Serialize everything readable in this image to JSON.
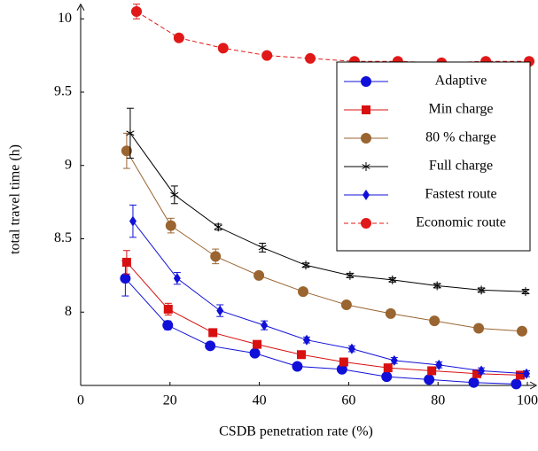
{
  "chart_data": {
    "type": "line",
    "xlabel": "CSDB penetration rate (%)",
    "ylabel": "total travel time (h)",
    "xlim": [
      0,
      102
    ],
    "ylim": [
      7.5,
      10.1
    ],
    "xticks": [
      0,
      20,
      40,
      60,
      80,
      100
    ],
    "yticks": [
      8,
      8.5,
      9,
      9.5,
      10
    ],
    "legend": "upper right",
    "series": [
      {
        "name": "Adaptive",
        "color": "#1010d8",
        "marker": "circle",
        "dashed": false,
        "x": [
          10,
          19.5,
          29,
          39,
          48.5,
          58.5,
          68.5,
          78,
          88,
          97.5
        ],
        "values": [
          8.23,
          7.91,
          7.77,
          7.72,
          7.63,
          7.61,
          7.56,
          7.54,
          7.52,
          7.51
        ],
        "errors": [
          0.12,
          0.03,
          0.015,
          0.015,
          0.01,
          0.01,
          0.01,
          0.01,
          0.01,
          0.01
        ]
      },
      {
        "name": "Min charge",
        "color": "#d81010",
        "marker": "square",
        "dashed": false,
        "x": [
          10.3,
          19.6,
          29.6,
          39.5,
          49.4,
          58.9,
          68.8,
          78.6,
          88.7,
          98.4
        ],
        "values": [
          8.34,
          8.02,
          7.86,
          7.78,
          7.71,
          7.66,
          7.62,
          7.6,
          7.58,
          7.57
        ],
        "errors": [
          0.08,
          0.04,
          0.015,
          0.015,
          0.01,
          0.01,
          0.01,
          0.01,
          0.01,
          0.01
        ]
      },
      {
        "name": "80 % charge",
        "color": "#9a6530",
        "marker": "circle",
        "dashed": false,
        "x": [
          10.3,
          20.2,
          30.2,
          39.9,
          49.8,
          59.5,
          69.4,
          79.2,
          89.1,
          98.8
        ],
        "values": [
          9.1,
          8.59,
          8.38,
          8.25,
          8.14,
          8.05,
          7.99,
          7.94,
          7.89,
          7.87
        ],
        "errors": [
          0.12,
          0.05,
          0.05,
          0.02,
          0.015,
          0.01,
          0.01,
          0.01,
          0.01,
          0.01
        ]
      },
      {
        "name": "Full charge",
        "color": "#000000",
        "marker": "star",
        "dashed": false,
        "x": [
          11.1,
          21,
          30.8,
          40.7,
          50.4,
          60.3,
          69.8,
          79.8,
          89.7,
          99.6
        ],
        "values": [
          9.22,
          8.8,
          8.58,
          8.44,
          8.32,
          8.25,
          8.22,
          8.18,
          8.15,
          8.14
        ],
        "errors": [
          0.17,
          0.06,
          0.02,
          0.03,
          0.015,
          0.015,
          0.015,
          0.015,
          0.015,
          0.015
        ]
      },
      {
        "name": "Fastest route",
        "color": "#1010d8",
        "marker": "diamond",
        "dashed": false,
        "x": [
          11.7,
          21.6,
          31.2,
          41.1,
          50.6,
          60.7,
          70.2,
          80.2,
          89.7,
          99.8
        ],
        "values": [
          8.62,
          8.23,
          8.01,
          7.91,
          7.81,
          7.75,
          7.67,
          7.64,
          7.6,
          7.58
        ],
        "errors": [
          0.11,
          0.04,
          0.04,
          0.03,
          0.02,
          0.02,
          0.02,
          0.02,
          0.02,
          0.02
        ]
      },
      {
        "name": "Economic route",
        "color": "#e01818",
        "marker": "circle",
        "dashed": true,
        "x": [
          12.5,
          22,
          31.9,
          41.7,
          51.4,
          61.3,
          71,
          80.8,
          90.7,
          100.4
        ],
        "values": [
          10.05,
          9.87,
          9.8,
          9.75,
          9.73,
          9.71,
          9.71,
          9.7,
          9.71,
          9.71
        ],
        "errors": [
          0.05,
          0.01,
          0.01,
          0.01,
          0.01,
          0.01,
          0.01,
          0.01,
          0.01,
          0.01
        ]
      }
    ]
  }
}
